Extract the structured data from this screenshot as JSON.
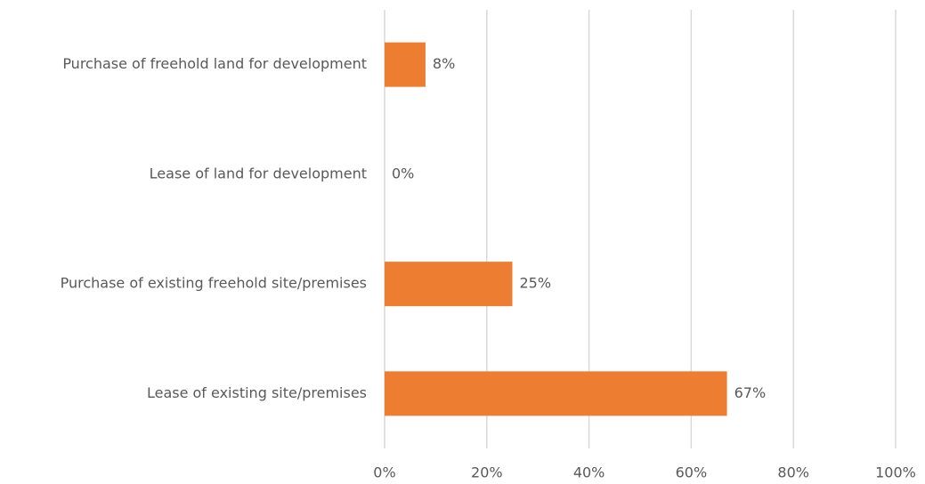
{
  "chart_data": {
    "type": "hbar",
    "categories": [
      "Purchase of freehold land for development",
      "Lease of land for development",
      "Purchase of existing freehold site/premises",
      "Lease of existing site/premises"
    ],
    "values": [
      8,
      0,
      25,
      67
    ],
    "value_labels": [
      "8%",
      "0%",
      "25%",
      "67%"
    ],
    "color": "#ed7d31",
    "xlim": [
      0,
      100
    ],
    "xticks": [
      {
        "value": 0,
        "label": "0%"
      },
      {
        "value": 20,
        "label": "20%"
      },
      {
        "value": 40,
        "label": "40%"
      },
      {
        "value": 60,
        "label": "60%"
      },
      {
        "value": 80,
        "label": "80%"
      },
      {
        "value": 100,
        "label": "100%"
      }
    ],
    "grid": true
  }
}
